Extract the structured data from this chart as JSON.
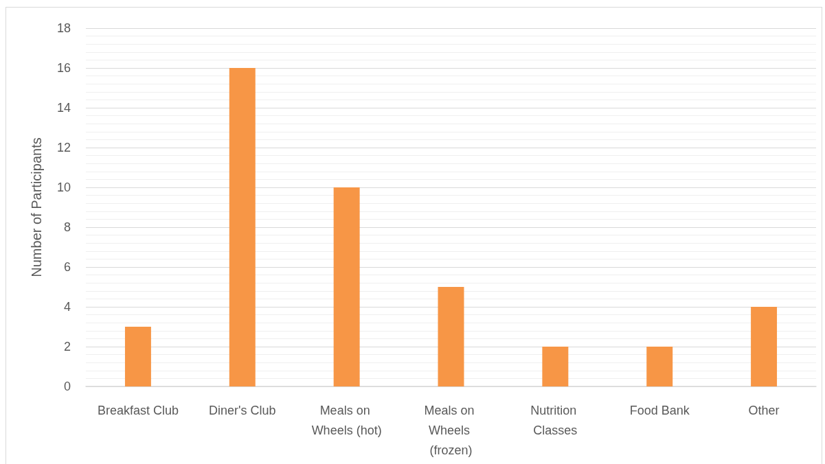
{
  "chart_data": {
    "type": "bar",
    "ylabel": "Number of Participants",
    "categories": [
      "Breakfast Club",
      "Diner's Club",
      "Meals on Wheels (hot)",
      "Meals on Wheels (frozen)",
      "Nutrition Classes",
      "Food Bank",
      "Other"
    ],
    "values": [
      3,
      16,
      10,
      5,
      2,
      2,
      4
    ],
    "color": "#f79646",
    "ylim": [
      0,
      18
    ],
    "yticks": [
      0,
      {
        "value": 0.4,
        "label": null
      },
      {
        "value": 0.8,
        "label": null
      },
      {
        "value": 1.2,
        "label": null
      },
      {
        "value": 1.6,
        "label": null
      },
      2,
      {
        "value": 2.4,
        "label": null
      },
      {
        "value": 2.8,
        "label": null
      },
      {
        "value": 3.2,
        "label": null
      },
      {
        "value": 3.6,
        "label": null
      },
      4,
      {
        "value": 4.4,
        "label": null
      },
      {
        "value": 4.8,
        "label": null
      },
      {
        "value": 5.2,
        "label": null
      },
      {
        "value": 5.6,
        "label": null
      },
      6,
      {
        "value": 6.4,
        "label": null
      },
      {
        "value": 6.8,
        "label": null
      },
      {
        "value": 7.2,
        "label": null
      },
      {
        "value": 7.6,
        "label": null
      },
      8,
      {
        "value": 8.4,
        "label": null
      },
      {
        "value": 8.8,
        "label": null
      },
      {
        "value": 9.2,
        "label": null
      },
      {
        "value": 9.6,
        "label": null
      },
      10,
      {
        "value": 10.4,
        "label": null
      },
      {
        "value": 10.8,
        "label": null
      },
      {
        "value": 11.2,
        "label": null
      },
      {
        "value": 11.6,
        "label": null
      },
      12,
      {
        "value": 12.4,
        "label": null
      },
      {
        "value": 12.8,
        "label": null
      },
      {
        "value": 13.2,
        "label": null
      },
      {
        "value": 13.6,
        "label": null
      },
      14,
      {
        "value": 14.4,
        "label": null
      },
      {
        "value": 14.8,
        "label": null
      },
      {
        "value": 15.2,
        "label": null
      },
      {
        "value": 15.6,
        "label": null
      },
      16,
      {
        "value": 16.4,
        "label": null
      },
      {
        "value": 16.8,
        "label": null
      },
      {
        "value": 17.2,
        "label": null
      },
      {
        "value": 17.6,
        "label": null
      },
      18
    ],
    "grid": "y"
  }
}
